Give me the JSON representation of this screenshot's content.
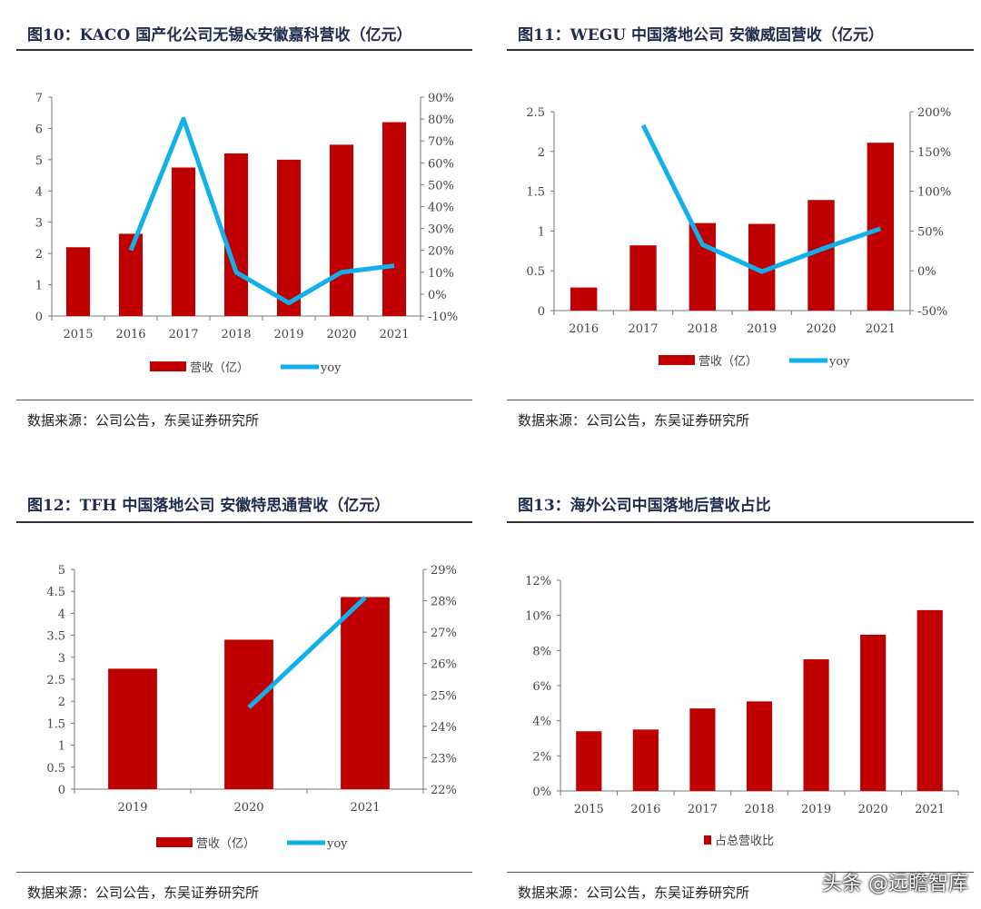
{
  "source_label": "数据来源：公司公告，东吴证券研究所",
  "watermark": "头条 @远瞻智库",
  "colors": {
    "bar": "#c00000",
    "line": "#12b0ea",
    "axis": "#777777"
  },
  "chart_data": [
    {
      "type": "bar+line",
      "title": "图10：KACO 国产化公司无锡&安徽嘉科营收（亿元）",
      "categories": [
        "2015",
        "2016",
        "2017",
        "2018",
        "2019",
        "2020",
        "2021"
      ],
      "series": [
        {
          "name": "营收（亿）",
          "type": "bar",
          "axis": "left",
          "values": [
            2.2,
            2.63,
            4.75,
            5.2,
            5.0,
            5.48,
            6.2
          ]
        },
        {
          "name": "yoy",
          "type": "line",
          "axis": "right",
          "values": [
            null,
            20,
            80,
            10,
            -4,
            10,
            13
          ]
        }
      ],
      "yleft": {
        "range": [
          0,
          7
        ],
        "ticks": [
          "0",
          "1",
          "2",
          "3",
          "4",
          "5",
          "6",
          "7"
        ]
      },
      "yright": {
        "range": [
          -10,
          90
        ],
        "ticks": [
          "-10%",
          "0%",
          "10%",
          "20%",
          "30%",
          "40%",
          "50%",
          "60%",
          "70%",
          "80%",
          "90%"
        ]
      },
      "legend": "bottom"
    },
    {
      "type": "bar+line",
      "title": "图11：WEGU 中国落地公司 安徽威固营收（亿元）",
      "categories": [
        "2016",
        "2017",
        "2018",
        "2019",
        "2020",
        "2021"
      ],
      "series": [
        {
          "name": "营收（亿）",
          "type": "bar",
          "axis": "left",
          "values": [
            0.29,
            0.82,
            1.1,
            1.09,
            1.39,
            2.11
          ]
        },
        {
          "name": "yoy",
          "type": "line",
          "axis": "right",
          "values": [
            null,
            183,
            33,
            -1,
            27,
            53
          ]
        }
      ],
      "yleft": {
        "range": [
          0,
          2.5
        ],
        "ticks": [
          "0",
          "0.5",
          "1",
          "1.5",
          "2",
          "2.5"
        ]
      },
      "yright": {
        "range": [
          -50,
          200
        ],
        "ticks": [
          "-50%",
          "0%",
          "50%",
          "100%",
          "150%",
          "200%"
        ]
      },
      "legend": "bottom"
    },
    {
      "type": "bar+line",
      "title": "图12：TFH 中国落地公司 安徽特思通营收（亿元）",
      "categories": [
        "2019",
        "2020",
        "2021"
      ],
      "series": [
        {
          "name": "营收（亿）",
          "type": "bar",
          "axis": "left",
          "values": [
            2.74,
            3.4,
            4.37
          ]
        },
        {
          "name": "yoy",
          "type": "line",
          "axis": "right",
          "values": [
            null,
            24.6,
            28.1
          ]
        }
      ],
      "yleft": {
        "range": [
          0,
          5
        ],
        "ticks": [
          "0",
          "0.5",
          "1",
          "1.5",
          "2",
          "2.5",
          "3",
          "3.5",
          "4",
          "4.5",
          "5"
        ]
      },
      "yright": {
        "range": [
          22,
          29
        ],
        "ticks": [
          "22%",
          "23%",
          "24%",
          "25%",
          "26%",
          "27%",
          "28%",
          "29%"
        ]
      },
      "legend": "bottom"
    },
    {
      "type": "bar",
      "title": "图13：海外公司中国落地后营收占比",
      "categories": [
        "2015",
        "2016",
        "2017",
        "2018",
        "2019",
        "2020",
        "2021"
      ],
      "series": [
        {
          "name": "占总营收比",
          "type": "bar",
          "axis": "left",
          "values": [
            3.4,
            3.5,
            4.7,
            5.1,
            7.5,
            8.9,
            10.3
          ]
        }
      ],
      "yleft": {
        "range": [
          0,
          12
        ],
        "ticks": [
          "0%",
          "2%",
          "4%",
          "6%",
          "8%",
          "10%",
          "12%"
        ]
      },
      "legend": "bottom"
    }
  ]
}
